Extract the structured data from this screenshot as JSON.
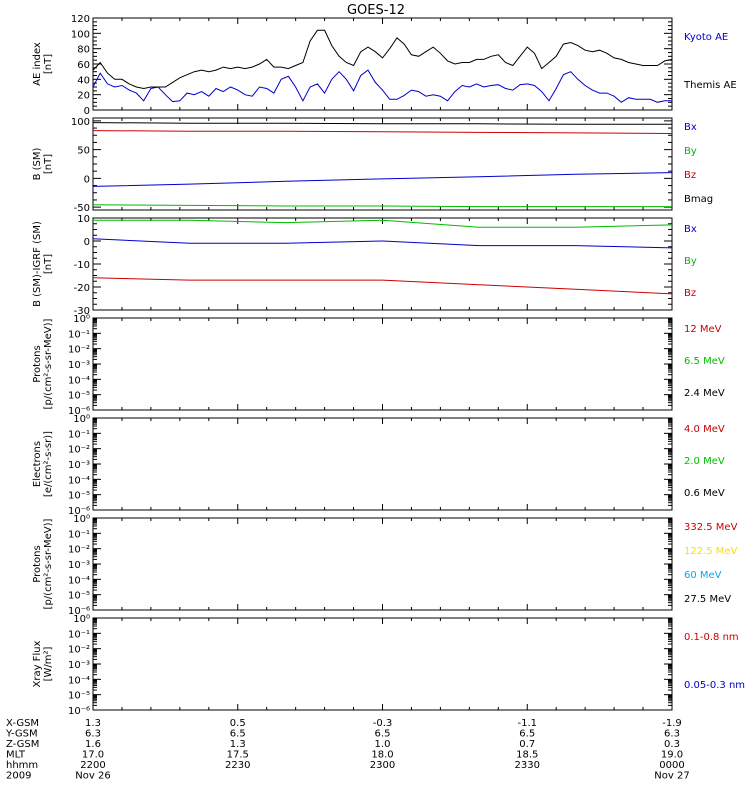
{
  "title": "GOES-12",
  "chart_data": [
    {
      "type": "line",
      "id": "ae",
      "ylabel": [
        "AE index",
        "[nT]"
      ],
      "yscale": "linear",
      "ylim": [
        0,
        120
      ],
      "yticks": [
        0,
        20,
        40,
        60,
        80,
        100,
        120
      ],
      "ytick_labels": [
        "0",
        "20",
        "40",
        "60",
        "80",
        "100",
        "120"
      ],
      "series": [
        {
          "name": "Kyoto AE",
          "color": "#0000cc",
          "values": [
            30,
            48,
            34,
            30,
            32,
            26,
            22,
            12,
            28,
            30,
            20,
            11,
            12,
            22,
            20,
            24,
            18,
            28,
            24,
            30,
            26,
            20,
            18,
            30,
            28,
            22,
            40,
            44,
            30,
            12,
            30,
            34,
            22,
            40,
            50,
            40,
            25,
            45,
            52,
            36,
            26,
            14,
            14,
            19,
            26,
            24,
            18,
            20,
            18,
            12,
            24,
            32,
            30,
            34,
            30,
            32,
            33,
            28,
            26,
            33,
            34,
            32,
            24,
            12,
            28,
            46,
            50,
            40,
            32,
            26,
            22,
            22,
            18,
            10,
            16,
            14,
            14,
            14,
            10,
            12,
            12
          ]
        },
        {
          "name": "Themis AE",
          "color": "#000000",
          "values": [
            52,
            62,
            48,
            40,
            40,
            34,
            30,
            28,
            30,
            30,
            30,
            36,
            42,
            46,
            50,
            52,
            50,
            52,
            56,
            54,
            56,
            54,
            56,
            60,
            66,
            56,
            56,
            54,
            58,
            62,
            90,
            104,
            104,
            84,
            70,
            62,
            58,
            76,
            82,
            76,
            68,
            80,
            94,
            86,
            72,
            70,
            76,
            82,
            74,
            64,
            60,
            62,
            62,
            66,
            66,
            70,
            72,
            62,
            58,
            70,
            82,
            74,
            54,
            62,
            70,
            86,
            88,
            84,
            78,
            76,
            78,
            74,
            68,
            66,
            62,
            60,
            58,
            58,
            58,
            64,
            66
          ]
        }
      ]
    },
    {
      "type": "line",
      "id": "bsm",
      "ylabel": [
        "B (SM)",
        "[nT]"
      ],
      "yscale": "linear",
      "ylim": [
        -55,
        105
      ],
      "yticks": [
        -50,
        0,
        50,
        100
      ],
      "ytick_labels": [
        "-50",
        "0",
        "50",
        "100"
      ],
      "series": [
        {
          "name": "Bx",
          "color": "#0000cc",
          "values": [
            -14,
            -10,
            -5,
            -1,
            3,
            7,
            10
          ]
        },
        {
          "name": "By",
          "color": "#00bb00",
          "values": [
            -46,
            -47,
            -48,
            -48,
            -49,
            -49,
            -49
          ]
        },
        {
          "name": "Bz",
          "color": "#cc0000",
          "values": [
            83,
            82,
            82,
            81,
            80,
            79,
            78
          ]
        },
        {
          "name": "Bmag",
          "color": "#000000",
          "values": [
            97,
            96,
            96,
            95,
            95,
            94,
            94
          ]
        }
      ]
    },
    {
      "type": "line",
      "id": "bsm-igrf",
      "ylabel": [
        "B (SM)-IGRF (SM)",
        "[nT]"
      ],
      "yscale": "linear",
      "ylim": [
        -30,
        10
      ],
      "yticks": [
        -30,
        -20,
        -10,
        0,
        10
      ],
      "ytick_labels": [
        "-30",
        "-20",
        "-10",
        "0",
        "10"
      ],
      "series": [
        {
          "name": "Bx",
          "color": "#0000cc",
          "values": [
            1,
            -1,
            -1,
            0,
            -2,
            -2,
            -3
          ]
        },
        {
          "name": "By",
          "color": "#00bb00",
          "values": [
            9,
            9,
            8,
            9,
            6,
            6,
            7
          ]
        },
        {
          "name": "Bz",
          "color": "#cc0000",
          "values": [
            -16,
            -17,
            -17,
            -17,
            -19,
            -21,
            -23
          ]
        }
      ]
    },
    {
      "type": "line",
      "id": "protons1",
      "ylabel": [
        "Protons",
        "[p/(cm²-s-sr-MeV)]"
      ],
      "yscale": "log",
      "ylim": [
        -6,
        0
      ],
      "yticks": [
        -6,
        -5,
        -4,
        -3,
        -2,
        -1,
        0
      ],
      "ytick_labels": [
        "10⁻⁶",
        "10⁻⁵",
        "10⁻⁴",
        "10⁻³",
        "10⁻²",
        "10⁻¹",
        "10⁰"
      ],
      "series": [
        {
          "name": "12 MeV",
          "color": "#cc0000",
          "values": []
        },
        {
          "name": "6.5 MeV",
          "color": "#00bb00",
          "values": []
        },
        {
          "name": "2.4 MeV",
          "color": "#000000",
          "values": []
        }
      ]
    },
    {
      "type": "line",
      "id": "electrons",
      "ylabel": [
        "Electrons",
        "[e/(cm²-s-sr)]"
      ],
      "yscale": "log",
      "ylim": [
        -6,
        0
      ],
      "yticks": [
        -6,
        -5,
        -4,
        -3,
        -2,
        -1,
        0
      ],
      "ytick_labels": [
        "10⁻⁶",
        "10⁻⁵",
        "10⁻⁴",
        "10⁻³",
        "10⁻²",
        "10⁻¹",
        "10⁰"
      ],
      "series": [
        {
          "name": "4.0 MeV",
          "color": "#cc0000",
          "values": []
        },
        {
          "name": "2.0 MeV",
          "color": "#00bb00",
          "values": []
        },
        {
          "name": "0.6 MeV",
          "color": "#000000",
          "values": []
        }
      ]
    },
    {
      "type": "line",
      "id": "protons2",
      "ylabel": [
        "Protons",
        "[p/(cm²-s-sr-MeV)]"
      ],
      "yscale": "log",
      "ylim": [
        -6,
        0
      ],
      "yticks": [
        -6,
        -5,
        -4,
        -3,
        -2,
        -1,
        0
      ],
      "ytick_labels": [
        "10⁻⁶",
        "10⁻⁵",
        "10⁻⁴",
        "10⁻³",
        "10⁻²",
        "10⁻¹",
        "10⁰"
      ],
      "series": [
        {
          "name": "332.5 MeV",
          "color": "#cc0000",
          "values": []
        },
        {
          "name": "122.5 MeV",
          "color": "#ffdd00",
          "values": []
        },
        {
          "name": "60 MeV",
          "color": "#00aaee",
          "values": []
        },
        {
          "name": "27.5 MeV",
          "color": "#000000",
          "values": []
        }
      ]
    },
    {
      "type": "line",
      "id": "xray",
      "ylabel": [
        "Xray Flux",
        "[W/m²]"
      ],
      "yscale": "log",
      "ylim": [
        -6,
        0
      ],
      "yticks": [
        -6,
        -5,
        -4,
        -3,
        -2,
        -1,
        0
      ],
      "ytick_labels": [
        "10⁻⁶",
        "10⁻⁵",
        "10⁻⁴",
        "10⁻³",
        "10⁻²",
        "10⁻¹",
        "10⁰"
      ],
      "series": [
        {
          "name": "0.1-0.8 nm",
          "color": "#cc0000",
          "values": []
        },
        {
          "name": "0.05-0.3 nm",
          "color": "#0000cc",
          "values": []
        }
      ]
    }
  ],
  "x_axis": {
    "rows": [
      {
        "label": "X-GSM",
        "values": [
          "1.3",
          "0.5",
          "-0.3",
          "-1.1",
          "-1.9"
        ]
      },
      {
        "label": "Y-GSM",
        "values": [
          "6.3",
          "6.5",
          "6.5",
          "6.5",
          "6.3"
        ]
      },
      {
        "label": "Z-GSM",
        "values": [
          "1.6",
          "1.3",
          "1.0",
          "0.7",
          "0.3"
        ]
      },
      {
        "label": "MLT",
        "values": [
          "17.0",
          "17.5",
          "18.0",
          "18.5",
          "19.0"
        ]
      },
      {
        "label": "hhmm",
        "values": [
          "2200",
          "2230",
          "2300",
          "2330",
          "0000"
        ]
      },
      {
        "label": "2009",
        "values": [
          "Nov 26",
          "",
          "",
          "",
          "Nov 27"
        ]
      }
    ]
  }
}
